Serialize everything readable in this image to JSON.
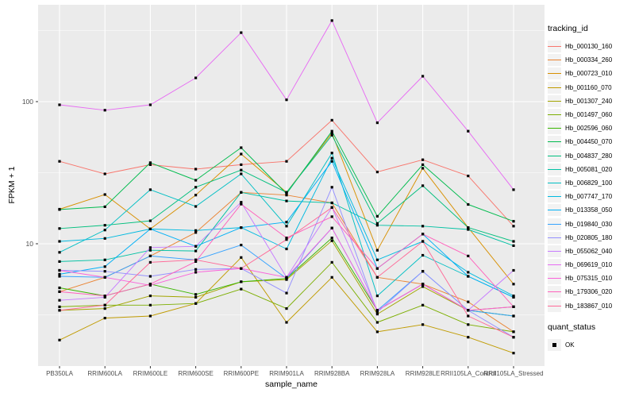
{
  "chart_data": {
    "type": "line",
    "title": "",
    "xlabel": "sample_name",
    "ylabel": "FPKM + 1",
    "legend_title": "tracking_id",
    "y_scale": "log10",
    "y_tick_labels": [
      "100",
      "10"
    ],
    "y_tick_values": [
      100,
      10
    ],
    "y_minor_grid_values": [
      3.162,
      31.623,
      316.228
    ],
    "ylim": [
      1.38,
      480
    ],
    "grid": true,
    "legend_position": "right",
    "categories": [
      "PB350LA",
      "RRIM600LA",
      "RRIM600LE",
      "RRIM600SE",
      "RRIM600PE",
      "RRIM901LA",
      "RRIM928BA",
      "RRIM928LA",
      "RRIM928LE",
      "RRII105LA_Control",
      "RRII105LA_Stressed"
    ],
    "series": [
      {
        "name": "Hb_000130_160",
        "color": "#F8766D",
        "values": [
          38,
          31,
          36,
          33.5,
          36,
          38,
          74,
          32,
          39,
          30,
          13.3
        ]
      },
      {
        "name": "Hb_000334_260",
        "color": "#EA8331",
        "values": [
          4.6,
          5.8,
          8.2,
          12,
          23,
          22,
          19.4,
          5.8,
          5.2,
          3.9,
          2.4
        ]
      },
      {
        "name": "Hb_000723_010",
        "color": "#D89000",
        "values": [
          17.5,
          22.2,
          12.7,
          22,
          42.8,
          23,
          60,
          9.0,
          34,
          13,
          5.2
        ]
      },
      {
        "name": "Hb_001160_070",
        "color": "#C09B00",
        "values": [
          2.1,
          3.0,
          3.1,
          3.8,
          8.0,
          2.8,
          5.8,
          2.4,
          2.7,
          2.2,
          1.7
        ]
      },
      {
        "name": "Hb_001307_240",
        "color": "#A3A500",
        "values": [
          3.4,
          3.5,
          4.3,
          4.2,
          5.4,
          5.6,
          10.5,
          3.2,
          5.0,
          3.4,
          3.6
        ]
      },
      {
        "name": "Hb_001497_060",
        "color": "#7CAE00",
        "values": [
          3.6,
          3.7,
          3.7,
          3.8,
          4.8,
          3.5,
          7.4,
          2.8,
          3.7,
          2.7,
          2.4
        ]
      },
      {
        "name": "Hb_002596_060",
        "color": "#39B600",
        "values": [
          4.9,
          4.3,
          5.2,
          4.4,
          5.4,
          5.7,
          11,
          3.4,
          5.2,
          3.4,
          3.1
        ]
      },
      {
        "name": "Hb_004450_070",
        "color": "#00BB4E",
        "values": [
          17.4,
          18.2,
          37.2,
          28,
          47.4,
          22.5,
          62,
          15.6,
          36,
          18.9,
          14.4
        ]
      },
      {
        "name": "Hb_004837_280",
        "color": "#00BF7D",
        "values": [
          12.8,
          13.5,
          14.5,
          25,
          33,
          23,
          58,
          13.9,
          25.6,
          13,
          10.4
        ]
      },
      {
        "name": "Hb_005081_020",
        "color": "#00C1A3",
        "values": [
          7.5,
          7.7,
          9.0,
          8.9,
          23,
          20,
          19.4,
          13.5,
          13.3,
          12.6,
          9.7
        ]
      },
      {
        "name": "Hb_006829_100",
        "color": "#00BFC4",
        "values": [
          8.7,
          12.5,
          24,
          18.3,
          31,
          13.3,
          43.5,
          4.3,
          8.3,
          5.9,
          4.2
        ]
      },
      {
        "name": "Hb_007747_170",
        "color": "#00BAE0",
        "values": [
          10.4,
          10.9,
          12.7,
          12.4,
          13,
          9.2,
          40,
          7.7,
          10.4,
          6.3,
          4.3
        ]
      },
      {
        "name": "Hb_013358_050",
        "color": "#00B0F6",
        "values": [
          6.1,
          6.9,
          12.7,
          9.6,
          13,
          14.2,
          38,
          6.7,
          11.7,
          5.9,
          4.2
        ]
      },
      {
        "name": "Hb_019840_030",
        "color": "#35A2FF",
        "values": [
          5.9,
          5.8,
          8.2,
          7.7,
          9.8,
          5.7,
          12.9,
          3.4,
          6.4,
          3.4,
          3.1
        ]
      },
      {
        "name": "Hb_020805_180",
        "color": "#9590FF",
        "values": [
          6.5,
          6.4,
          5.9,
          6.6,
          6.7,
          4.5,
          25,
          3.3,
          6.4,
          3.4,
          2.2
        ]
      },
      {
        "name": "Hb_055062_040",
        "color": "#C77CFF",
        "values": [
          4.0,
          4.2,
          9.4,
          9.6,
          19.6,
          5.8,
          18,
          3.4,
          5.2,
          3.4,
          6.5
        ]
      },
      {
        "name": "Hb_069619_010",
        "color": "#E76BF3",
        "values": [
          95,
          87,
          95,
          147,
          306,
          103,
          372,
          71,
          151,
          62,
          24
        ]
      },
      {
        "name": "Hb_075315_010",
        "color": "#FA62DB",
        "values": [
          6.5,
          5.8,
          5.1,
          6.3,
          6.7,
          5.8,
          12.9,
          3.4,
          5.2,
          3.4,
          3.6
        ]
      },
      {
        "name": "Hb_179306_020",
        "color": "#FF62BC",
        "values": [
          4.6,
          4.3,
          5.2,
          7.5,
          19,
          11,
          15.5,
          6.7,
          11.7,
          8.2,
          3.6
        ]
      },
      {
        "name": "Hb_183867_010",
        "color": "#FF6A98",
        "values": [
          3.4,
          3.7,
          7.4,
          7.7,
          6.7,
          10.7,
          18,
          5.8,
          10.4,
          3.1,
          2.2
        ]
      }
    ],
    "quant_status": {
      "title": "quant_status",
      "items": [
        {
          "label": "OK",
          "marker": "black-square"
        }
      ]
    },
    "marker": {
      "shape": "square",
      "color": "#000000",
      "size": 3.2
    },
    "colors": {
      "panel_bg": "#EBEBEB",
      "grid": "#FFFFFF",
      "axis_text": "#4D4D4D",
      "tick_mark": "#333333",
      "text": "#000000",
      "legend_key_bg": "#F2F2F2"
    }
  }
}
